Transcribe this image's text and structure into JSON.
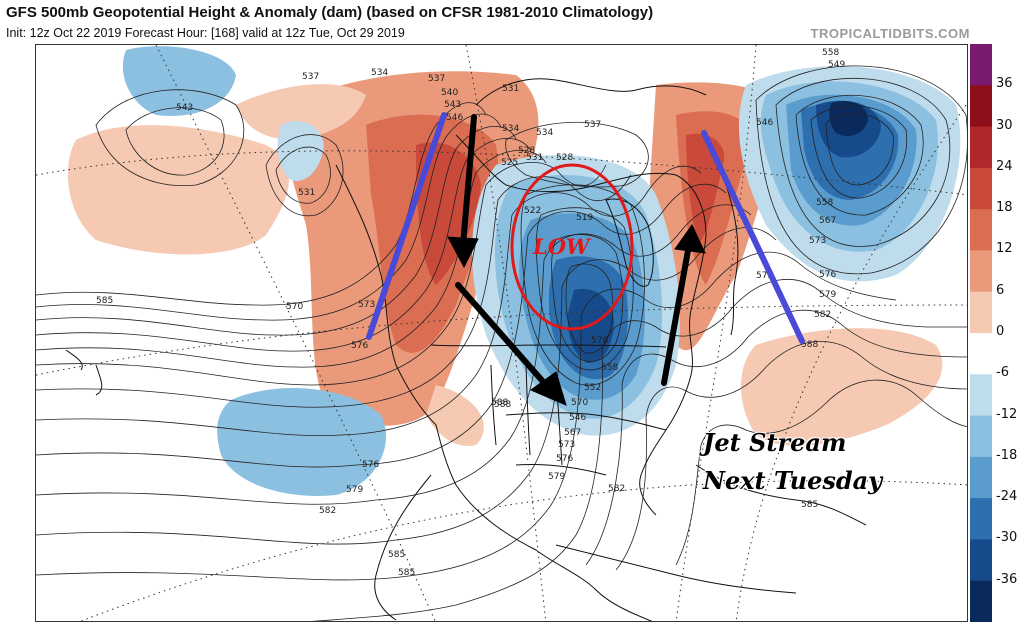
{
  "header": {
    "title": "GFS 500mb Geopotential Height & Anomaly (dam) (based on CFSR 1981-2010 Climatology)",
    "subtitle": "Init: 12z Oct 22 2019   Forecast Hour: [168]   valid at 12z Tue, Oct 29 2019",
    "site": "TROPICALTIDBITS.COM"
  },
  "colorbar": {
    "ticks": [
      "36",
      "30",
      "24",
      "18",
      "12",
      "6",
      "0",
      "-6",
      "-12",
      "-18",
      "-24",
      "-30",
      "-36"
    ],
    "colors": [
      "#7a1a6e",
      "#8e0f1c",
      "#b0282a",
      "#c94a3a",
      "#db6e52",
      "#ea9a7b",
      "#f6c9b3",
      "#ffffff",
      "#bfdcec",
      "#8cc0e0",
      "#5a9ccd",
      "#2e6fb0",
      "#164a8a",
      "#0b2a5c"
    ]
  },
  "overlay": {
    "low_label": "LOW",
    "caption_line1": "Jet Stream",
    "caption_line2": "Next Tuesday"
  },
  "contour_labels": [
    "537",
    "534",
    "537",
    "540",
    "543",
    "546",
    "531",
    "528",
    "525",
    "522",
    "519",
    "537",
    "534",
    "543",
    "549",
    "558",
    "546",
    "531",
    "534",
    "573",
    "570",
    "585",
    "576",
    "576",
    "579",
    "582",
    "585",
    "588",
    "573",
    "567",
    "558",
    "573",
    "576",
    "579",
    "582",
    "585",
    "588",
    "570",
    "558",
    "552",
    "546",
    "567",
    "573",
    "576",
    "579",
    "582",
    "585",
    "588",
    "570",
    "531",
    "528"
  ]
}
